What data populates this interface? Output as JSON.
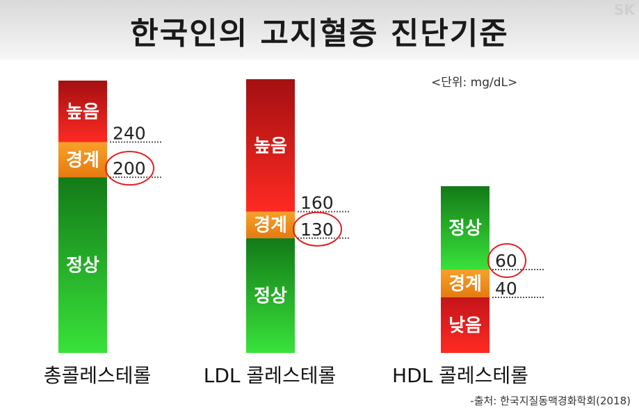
{
  "title": "한국인의 고지혈증 진단기준",
  "corner_logo": "SK",
  "unit": "<단위: mg/dL>",
  "source": "-출처: 한국지질동맥경화학회(2018)",
  "colors": {
    "high": "#e52420",
    "border": "#f28a1a",
    "normal": "#2fae2f",
    "low": "#e52420",
    "highlight": "#e02020"
  },
  "chart_data": {
    "type": "bar",
    "categories": [
      "총콜레스테롤",
      "LDL 콜레스테롤",
      "HDL 콜레스테롤"
    ],
    "bars": [
      {
        "category": "총콜레스테롤",
        "segments": [
          {
            "label": "정상",
            "from": 0,
            "to": 200,
            "color_key": "normal"
          },
          {
            "label": "경계",
            "from": 200,
            "to": 240,
            "color_key": "border"
          },
          {
            "label": "높음",
            "from": 240,
            "to": 310,
            "color_key": "high"
          }
        ],
        "thresholds": [
          {
            "value": 240,
            "label": "240",
            "circled": false
          },
          {
            "value": 200,
            "label": "200",
            "circled": true
          }
        ]
      },
      {
        "category": "LDL 콜레스테롤",
        "segments": [
          {
            "label": "정상",
            "from": 0,
            "to": 130,
            "color_key": "normal"
          },
          {
            "label": "경계",
            "from": 130,
            "to": 160,
            "color_key": "border"
          },
          {
            "label": "높음",
            "from": 160,
            "to": 310,
            "color_key": "high"
          }
        ],
        "thresholds": [
          {
            "value": 160,
            "label": "160",
            "circled": false
          },
          {
            "value": 130,
            "label": "130",
            "circled": true
          }
        ]
      },
      {
        "category": "HDL 콜레스테롤",
        "segments": [
          {
            "label": "낮음",
            "from": 0,
            "to": 40,
            "color_key": "low"
          },
          {
            "label": "경계",
            "from": 40,
            "to": 60,
            "color_key": "border"
          },
          {
            "label": "정상",
            "from": 60,
            "to": 120,
            "color_key": "normal"
          }
        ],
        "thresholds": [
          {
            "value": 60,
            "label": "60",
            "circled": true
          },
          {
            "value": 40,
            "label": "40",
            "circled": false
          }
        ]
      }
    ]
  }
}
